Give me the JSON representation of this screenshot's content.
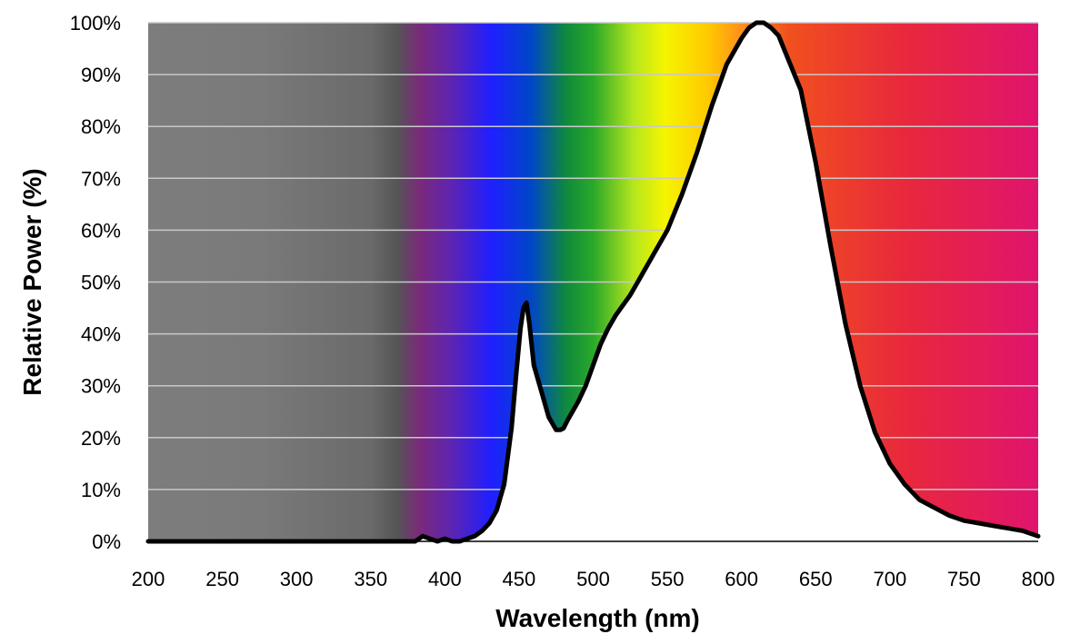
{
  "chart_data": {
    "type": "area",
    "title": "",
    "xlabel": "Wavelength (nm)",
    "ylabel": "Relative Power (%)",
    "xlim": [
      200,
      800
    ],
    "ylim": [
      0,
      100
    ],
    "x_ticks": [
      "200",
      "250",
      "300",
      "350",
      "400",
      "450",
      "500",
      "550",
      "600",
      "650",
      "700",
      "750",
      "800"
    ],
    "y_ticks": [
      "0%",
      "10%",
      "20%",
      "30%",
      "40%",
      "50%",
      "60%",
      "70%",
      "80%",
      "90%",
      "100%"
    ],
    "grid": true,
    "legend": "none",
    "background": "visible light spectrum gradient (grey UV region, violet through red); area under curve white",
    "series": [
      {
        "x": [
          200,
          380,
          385,
          390,
          395,
          400,
          405,
          410,
          415,
          420,
          425,
          430,
          435,
          440,
          445,
          448,
          451,
          453,
          455,
          457,
          460,
          463,
          466,
          470,
          475,
          478,
          480,
          483,
          486,
          490,
          495,
          500,
          505,
          510,
          515,
          520,
          525,
          530,
          540,
          550,
          560,
          570,
          580,
          590,
          600,
          605,
          610,
          615,
          620,
          625,
          630,
          640,
          650,
          660,
          670,
          680,
          690,
          700,
          710,
          720,
          730,
          740,
          750,
          760,
          770,
          780,
          790,
          800
        ],
        "y": [
          0,
          0,
          1,
          0.5,
          0,
          0.5,
          0,
          0,
          0.5,
          1,
          2,
          3.5,
          6,
          11,
          22,
          32,
          41,
          45,
          46,
          42,
          34,
          31,
          28,
          24,
          21.5,
          21.5,
          21.8,
          23.5,
          25,
          27,
          30,
          34,
          38,
          41,
          43.5,
          45.5,
          47.5,
          50,
          55,
          60,
          67,
          75,
          84,
          92,
          97,
          99,
          100,
          100,
          99,
          97.5,
          94,
          87,
          73,
          57,
          42,
          30,
          21,
          15,
          11,
          8,
          6.5,
          5,
          4,
          3.5,
          3,
          2.5,
          2,
          1
        ]
      }
    ]
  }
}
